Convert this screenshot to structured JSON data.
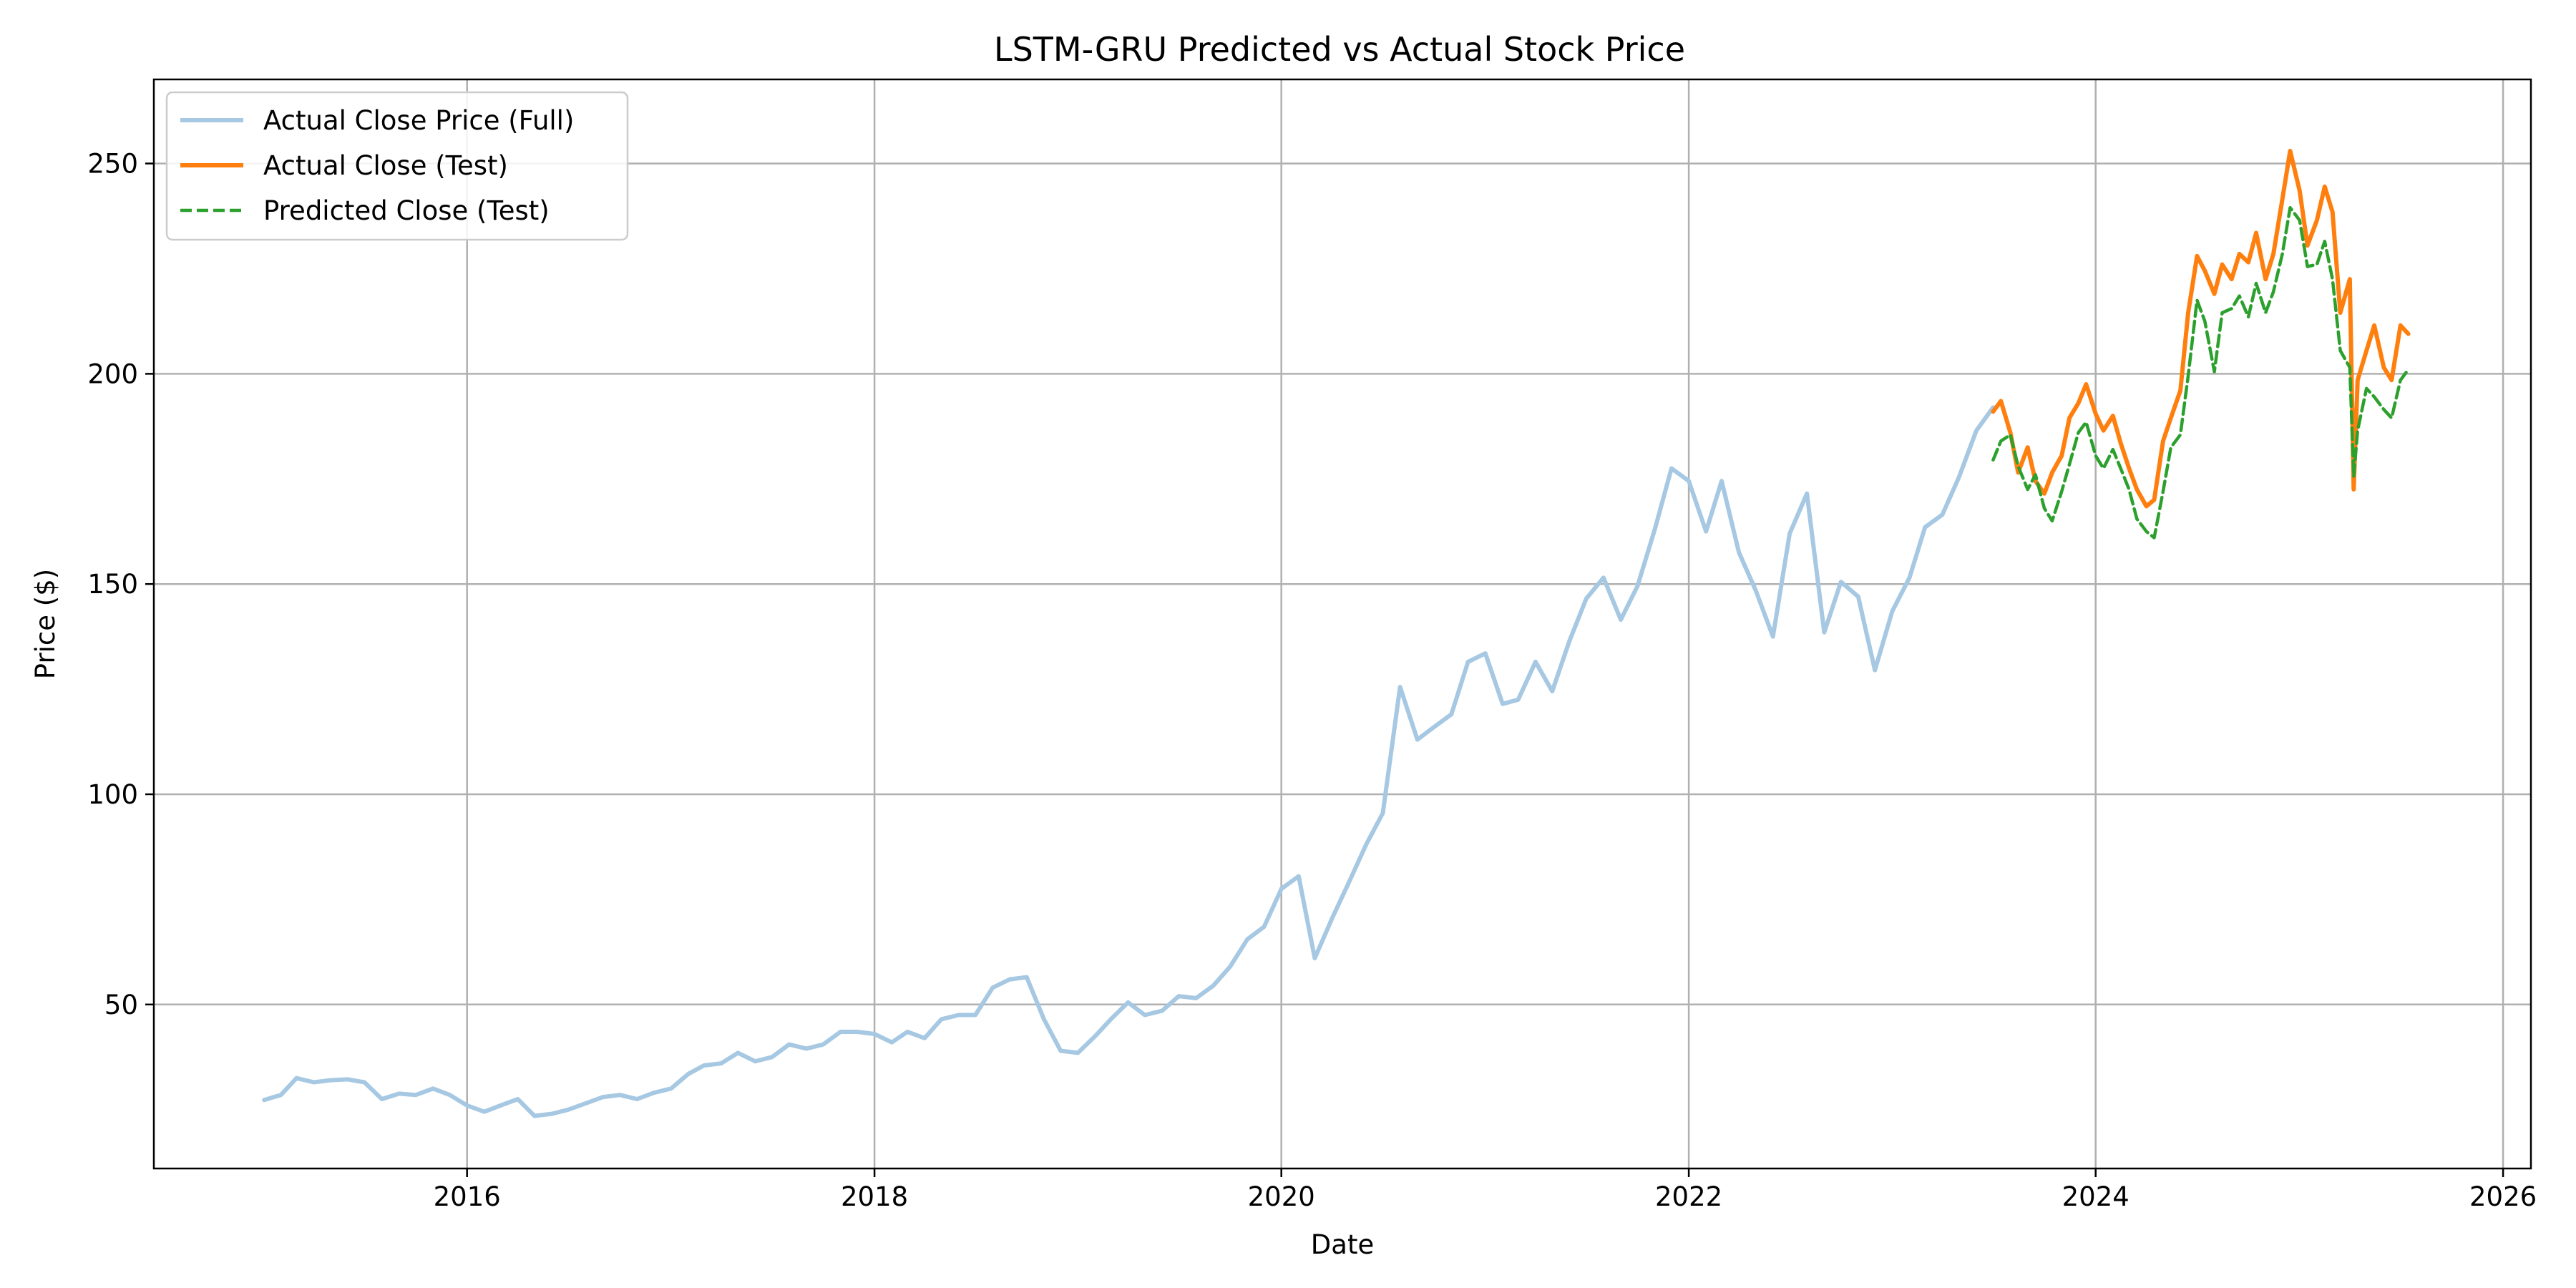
{
  "chart_data": {
    "type": "line",
    "title": "LSTM-GRU Predicted vs Actual Stock Price",
    "xlabel": "Date",
    "ylabel": "Price ($)",
    "x_axis_type": "date",
    "xlim": [
      "2014-06-18",
      "2026-02-20"
    ],
    "ylim": [
      11,
      270
    ],
    "x_ticks": [
      {
        "label": "2016",
        "date": "2016-01-01"
      },
      {
        "label": "2018",
        "date": "2018-01-01"
      },
      {
        "label": "2020",
        "date": "2020-01-01"
      },
      {
        "label": "2022",
        "date": "2022-01-01"
      },
      {
        "label": "2024",
        "date": "2024-01-01"
      },
      {
        "label": "2026",
        "date": "2026-01-01"
      }
    ],
    "y_ticks": [
      {
        "label": "50",
        "value": 50
      },
      {
        "label": "100",
        "value": 100
      },
      {
        "label": "150",
        "value": 150
      },
      {
        "label": "200",
        "value": 200
      },
      {
        "label": "250",
        "value": 250
      }
    ],
    "grid": true,
    "legend_position": "top-left",
    "series": [
      {
        "name": "Actual Close Price (Full)",
        "color": "#a6c8e2",
        "style": "solid",
        "points": [
          [
            "2015-01-02",
            27.3
          ],
          [
            "2015-02-01",
            28.5
          ],
          [
            "2015-03-01",
            32.5
          ],
          [
            "2015-04-01",
            31.5
          ],
          [
            "2015-05-01",
            32.0
          ],
          [
            "2015-06-01",
            32.2
          ],
          [
            "2015-07-01",
            31.5
          ],
          [
            "2015-08-01",
            27.5
          ],
          [
            "2015-09-01",
            28.8
          ],
          [
            "2015-10-01",
            28.5
          ],
          [
            "2015-11-01",
            30.0
          ],
          [
            "2015-12-01",
            28.5
          ],
          [
            "2016-01-01",
            26.0
          ],
          [
            "2016-02-01",
            24.5
          ],
          [
            "2016-03-01",
            26.0
          ],
          [
            "2016-04-01",
            27.5
          ],
          [
            "2016-05-01",
            23.5
          ],
          [
            "2016-06-01",
            24.0
          ],
          [
            "2016-07-01",
            25.0
          ],
          [
            "2016-08-01",
            26.5
          ],
          [
            "2016-09-01",
            28.0
          ],
          [
            "2016-10-01",
            28.5
          ],
          [
            "2016-11-01",
            27.5
          ],
          [
            "2016-12-01",
            29.0
          ],
          [
            "2017-01-01",
            30.0
          ],
          [
            "2017-02-01",
            33.5
          ],
          [
            "2017-03-01",
            35.5
          ],
          [
            "2017-04-01",
            36.0
          ],
          [
            "2017-05-01",
            38.5
          ],
          [
            "2017-06-01",
            36.5
          ],
          [
            "2017-07-01",
            37.5
          ],
          [
            "2017-08-01",
            40.5
          ],
          [
            "2017-09-01",
            39.5
          ],
          [
            "2017-10-01",
            40.5
          ],
          [
            "2017-11-01",
            43.5
          ],
          [
            "2017-12-01",
            43.5
          ],
          [
            "2018-01-01",
            43.0
          ],
          [
            "2018-02-01",
            41.0
          ],
          [
            "2018-03-01",
            43.5
          ],
          [
            "2018-04-01",
            42.0
          ],
          [
            "2018-05-01",
            46.5
          ],
          [
            "2018-06-01",
            47.5
          ],
          [
            "2018-07-01",
            47.5
          ],
          [
            "2018-08-01",
            54.0
          ],
          [
            "2018-09-01",
            56.0
          ],
          [
            "2018-10-01",
            56.5
          ],
          [
            "2018-11-01",
            46.5
          ],
          [
            "2018-12-01",
            39.0
          ],
          [
            "2019-01-01",
            38.5
          ],
          [
            "2019-02-01",
            42.5
          ],
          [
            "2019-03-01",
            46.5
          ],
          [
            "2019-04-01",
            50.5
          ],
          [
            "2019-05-01",
            47.5
          ],
          [
            "2019-06-01",
            48.5
          ],
          [
            "2019-07-01",
            52.0
          ],
          [
            "2019-08-01",
            51.5
          ],
          [
            "2019-09-01",
            54.5
          ],
          [
            "2019-10-01",
            59.0
          ],
          [
            "2019-11-01",
            65.5
          ],
          [
            "2019-12-01",
            68.5
          ],
          [
            "2020-01-01",
            77.5
          ],
          [
            "2020-02-01",
            80.5
          ],
          [
            "2020-03-01",
            61.0
          ],
          [
            "2020-04-01",
            70.5
          ],
          [
            "2020-05-01",
            79.0
          ],
          [
            "2020-06-01",
            88.0
          ],
          [
            "2020-07-01",
            95.5
          ],
          [
            "2020-08-01",
            125.5
          ],
          [
            "2020-09-01",
            113.0
          ],
          [
            "2020-10-01",
            116.0
          ],
          [
            "2020-11-01",
            119.0
          ],
          [
            "2020-12-01",
            131.5
          ],
          [
            "2021-01-01",
            133.5
          ],
          [
            "2021-02-01",
            121.5
          ],
          [
            "2021-03-01",
            122.5
          ],
          [
            "2021-04-01",
            131.5
          ],
          [
            "2021-05-01",
            124.5
          ],
          [
            "2021-06-01",
            136.5
          ],
          [
            "2021-07-01",
            146.5
          ],
          [
            "2021-08-01",
            151.5
          ],
          [
            "2021-09-01",
            141.5
          ],
          [
            "2021-10-01",
            149.5
          ],
          [
            "2021-11-01",
            163.0
          ],
          [
            "2021-12-01",
            177.5
          ],
          [
            "2022-01-01",
            174.5
          ],
          [
            "2022-02-01",
            162.5
          ],
          [
            "2022-03-01",
            174.5
          ],
          [
            "2022-04-01",
            157.5
          ],
          [
            "2022-05-01",
            148.5
          ],
          [
            "2022-06-01",
            137.5
          ],
          [
            "2022-07-01",
            162.0
          ],
          [
            "2022-08-01",
            171.5
          ],
          [
            "2022-09-01",
            138.5
          ],
          [
            "2022-10-01",
            150.5
          ],
          [
            "2022-11-01",
            147.0
          ],
          [
            "2022-12-01",
            129.5
          ],
          [
            "2023-01-01",
            143.5
          ],
          [
            "2023-02-01",
            151.5
          ],
          [
            "2023-03-01",
            163.5
          ],
          [
            "2023-04-01",
            166.5
          ],
          [
            "2023-05-01",
            175.5
          ],
          [
            "2023-06-01",
            186.5
          ],
          [
            "2023-07-01",
            192.0
          ]
        ]
      },
      {
        "name": "Actual Close (Test)",
        "color": "#ff7f0e",
        "style": "solid",
        "points": [
          [
            "2023-07-01",
            191.0
          ],
          [
            "2023-07-15",
            193.5
          ],
          [
            "2023-08-01",
            186.0
          ],
          [
            "2023-08-15",
            176.5
          ],
          [
            "2023-09-01",
            182.5
          ],
          [
            "2023-09-15",
            174.5
          ],
          [
            "2023-10-01",
            171.5
          ],
          [
            "2023-10-15",
            176.5
          ],
          [
            "2023-11-01",
            180.5
          ],
          [
            "2023-11-15",
            189.5
          ],
          [
            "2023-12-01",
            193.0
          ],
          [
            "2023-12-15",
            197.5
          ],
          [
            "2024-01-01",
            190.5
          ],
          [
            "2024-01-15",
            186.5
          ],
          [
            "2024-02-01",
            190.0
          ],
          [
            "2024-02-15",
            183.5
          ],
          [
            "2024-03-01",
            177.5
          ],
          [
            "2024-03-15",
            172.5
          ],
          [
            "2024-04-01",
            168.5
          ],
          [
            "2024-04-15",
            170.0
          ],
          [
            "2024-05-01",
            184.0
          ],
          [
            "2024-05-15",
            189.5
          ],
          [
            "2024-06-01",
            196.0
          ],
          [
            "2024-06-15",
            214.5
          ],
          [
            "2024-07-01",
            228.0
          ],
          [
            "2024-07-15",
            224.5
          ],
          [
            "2024-08-01",
            219.0
          ],
          [
            "2024-08-15",
            226.0
          ],
          [
            "2024-09-01",
            222.5
          ],
          [
            "2024-09-15",
            228.5
          ],
          [
            "2024-10-01",
            226.5
          ],
          [
            "2024-10-15",
            233.5
          ],
          [
            "2024-11-01",
            222.5
          ],
          [
            "2024-11-15",
            228.5
          ],
          [
            "2024-12-01",
            241.5
          ],
          [
            "2024-12-15",
            253.0
          ],
          [
            "2025-01-01",
            243.5
          ],
          [
            "2025-01-15",
            230.5
          ],
          [
            "2025-02-01",
            236.5
          ],
          [
            "2025-02-15",
            244.5
          ],
          [
            "2025-03-01",
            238.5
          ],
          [
            "2025-03-15",
            214.5
          ],
          [
            "2025-04-01",
            222.5
          ],
          [
            "2025-04-08",
            172.5
          ],
          [
            "2025-04-15",
            198.5
          ],
          [
            "2025-05-01",
            205.5
          ],
          [
            "2025-05-15",
            211.5
          ],
          [
            "2025-06-01",
            201.5
          ],
          [
            "2025-06-15",
            198.5
          ],
          [
            "2025-07-01",
            211.5
          ],
          [
            "2025-07-15",
            209.5
          ]
        ]
      },
      {
        "name": "Predicted Close (Test)",
        "color": "#2ca02c",
        "style": "dashed",
        "points": [
          [
            "2023-07-01",
            179.5
          ],
          [
            "2023-07-15",
            184.0
          ],
          [
            "2023-08-01",
            185.5
          ],
          [
            "2023-08-15",
            178.0
          ],
          [
            "2023-09-01",
            172.5
          ],
          [
            "2023-09-15",
            176.0
          ],
          [
            "2023-10-01",
            168.0
          ],
          [
            "2023-10-15",
            165.0
          ],
          [
            "2023-11-01",
            172.0
          ],
          [
            "2023-11-15",
            178.5
          ],
          [
            "2023-12-01",
            186.0
          ],
          [
            "2023-12-15",
            188.5
          ],
          [
            "2024-01-01",
            180.5
          ],
          [
            "2024-01-15",
            177.5
          ],
          [
            "2024-02-01",
            182.0
          ],
          [
            "2024-02-15",
            177.5
          ],
          [
            "2024-03-01",
            172.5
          ],
          [
            "2024-03-15",
            165.5
          ],
          [
            "2024-04-01",
            162.5
          ],
          [
            "2024-04-15",
            161.0
          ],
          [
            "2024-05-01",
            172.0
          ],
          [
            "2024-05-15",
            182.5
          ],
          [
            "2024-06-01",
            185.5
          ],
          [
            "2024-06-15",
            199.5
          ],
          [
            "2024-07-01",
            217.5
          ],
          [
            "2024-07-15",
            212.5
          ],
          [
            "2024-08-01",
            200.5
          ],
          [
            "2024-08-15",
            214.5
          ],
          [
            "2024-09-01",
            215.5
          ],
          [
            "2024-09-15",
            218.5
          ],
          [
            "2024-10-01",
            213.5
          ],
          [
            "2024-10-15",
            221.5
          ],
          [
            "2024-11-01",
            214.5
          ],
          [
            "2024-11-15",
            219.5
          ],
          [
            "2024-12-01",
            228.5
          ],
          [
            "2024-12-15",
            239.5
          ],
          [
            "2025-01-01",
            236.5
          ],
          [
            "2025-01-15",
            225.5
          ],
          [
            "2025-02-01",
            226.0
          ],
          [
            "2025-02-15",
            231.5
          ],
          [
            "2025-03-01",
            222.5
          ],
          [
            "2025-03-15",
            205.5
          ],
          [
            "2025-04-01",
            201.5
          ],
          [
            "2025-04-08",
            175.5
          ],
          [
            "2025-04-15",
            186.5
          ],
          [
            "2025-05-01",
            196.5
          ],
          [
            "2025-05-15",
            194.5
          ],
          [
            "2025-06-01",
            191.5
          ],
          [
            "2025-06-15",
            189.5
          ],
          [
            "2025-07-01",
            198.5
          ],
          [
            "2025-07-15",
            201.0
          ]
        ]
      }
    ]
  }
}
